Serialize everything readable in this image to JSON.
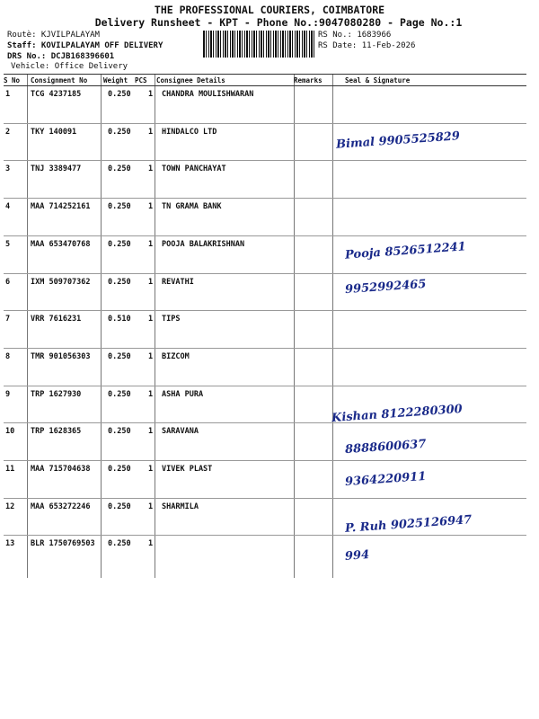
{
  "header": {
    "title": "THE PROFESSIONAL COURIERS, COIMBATORE",
    "subtitle": "Delivery Runsheet - KPT - Phone No.:9047080280 - Page No.:1",
    "route": "Routè: KJVILPALAYAM",
    "staff": "Staff: KOVILPALAYAM OFF DELIVERY",
    "drs_no": "DRS No.: DCJB168396601",
    "vehicle": "Vehicle: Office Delivery",
    "rs_no": "RS No.: 1683966",
    "rs_date": "RS Date: 11-Feb-2026"
  },
  "table": {
    "columns": [
      "S No",
      "Consignment No",
      "Weight",
      "PCS",
      "Consignee Details",
      "Remarks",
      "Seal & Signature"
    ],
    "rows": [
      {
        "sno": "1",
        "cn": "TCG 4237185",
        "wt": "0.250",
        "pcs": "1",
        "name": "CHANDRA MOULISHWARAN",
        "hw": ""
      },
      {
        "sno": "2",
        "cn": "TKY 140091",
        "wt": "0.250",
        "pcs": "1",
        "name": "HINDALCO LTD",
        "hw": "Bimal 9905525829"
      },
      {
        "sno": "3",
        "cn": "TNJ 3389477",
        "wt": "0.250",
        "pcs": "1",
        "name": "TOWN PANCHAYAT",
        "hw": ""
      },
      {
        "sno": "4",
        "cn": "MAA 714252161",
        "wt": "0.250",
        "pcs": "1",
        "name": "TN GRAMA BANK",
        "hw": ""
      },
      {
        "sno": "5",
        "cn": "MAA 653470768",
        "wt": "0.250",
        "pcs": "1",
        "name": "POOJA BALAKRISHNAN",
        "hw": "Pooja 8526512241"
      },
      {
        "sno": "6",
        "cn": "IXM 509707362",
        "wt": "0.250",
        "pcs": "1",
        "name": "REVATHI",
        "hw": "9952992465"
      },
      {
        "sno": "7",
        "cn": "VRR 7616231",
        "wt": "0.510",
        "pcs": "1",
        "name": "TIPS",
        "hw": ""
      },
      {
        "sno": "8",
        "cn": "TMR 901056303",
        "wt": "0.250",
        "pcs": "1",
        "name": "BIZCOM",
        "hw": ""
      },
      {
        "sno": "9",
        "cn": "TRP 1627930",
        "wt": "0.250",
        "pcs": "1",
        "name": "ASHA PURA",
        "hw": "Kishan 8122280300"
      },
      {
        "sno": "10",
        "cn": "TRP 1628365",
        "wt": "0.250",
        "pcs": "1",
        "name": "SARAVANA",
        "hw": "8888600637"
      },
      {
        "sno": "11",
        "cn": "MAA 715704638",
        "wt": "0.250",
        "pcs": "1",
        "name": "VIVEK PLAST",
        "hw": "9364220911"
      },
      {
        "sno": "12",
        "cn": "MAA 653272246",
        "wt": "0.250",
        "pcs": "1",
        "name": "SHARMILA",
        "hw": "P. Ruh 9025126947"
      },
      {
        "sno": "13",
        "cn": "BLR 1750769503",
        "wt": "0.250",
        "pcs": "1",
        "name": "",
        "hw": "994"
      }
    ]
  }
}
